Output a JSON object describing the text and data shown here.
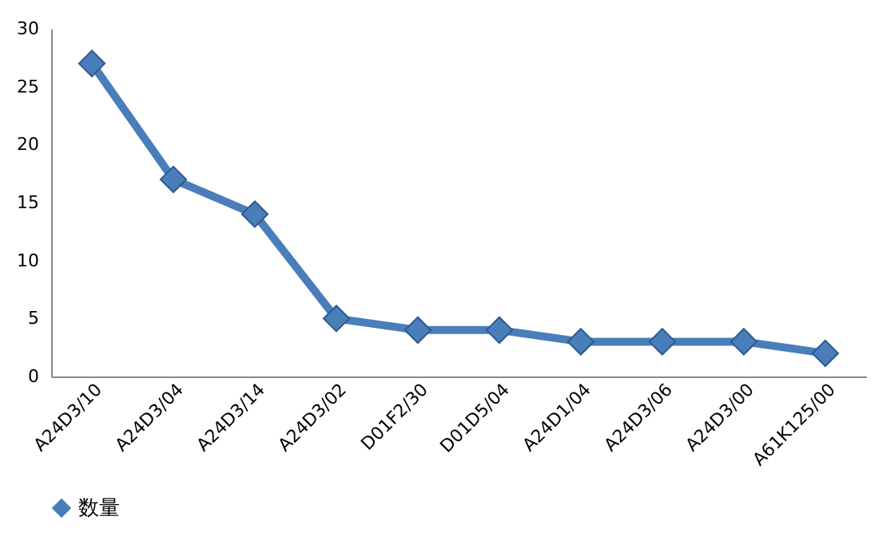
{
  "chart_data": {
    "type": "line",
    "categories": [
      "A24D3/10",
      "A24D3/04",
      "A24D3/14",
      "A24D3/02",
      "D01F2/30",
      "D01D5/04",
      "A24D1/04",
      "A24D3/06",
      "A24D3/00",
      "A61K125/00"
    ],
    "series": [
      {
        "name": "数量",
        "color": "#4a7ebb",
        "values": [
          27,
          17,
          14,
          5,
          4,
          4,
          3,
          3,
          3,
          2
        ]
      }
    ],
    "ylim": [
      0,
      30
    ],
    "yticks": [
      0,
      5,
      10,
      15,
      20,
      25,
      30
    ],
    "grid": false,
    "legend": "bottom",
    "marker": "diamond",
    "line_style": "solid"
  }
}
